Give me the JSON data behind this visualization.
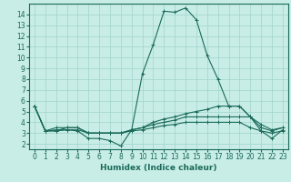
{
  "title": "",
  "xlabel": "Humidex (Indice chaleur)",
  "ylabel": "",
  "bg_color": "#c8ece6",
  "grid_color": "#a0d4cc",
  "line_color": "#1a6b5a",
  "xlim": [
    -0.5,
    23.5
  ],
  "ylim": [
    1.5,
    15.0
  ],
  "xticks": [
    0,
    1,
    2,
    3,
    4,
    5,
    6,
    7,
    8,
    9,
    10,
    11,
    12,
    13,
    14,
    15,
    16,
    17,
    18,
    19,
    20,
    21,
    22,
    23
  ],
  "yticks": [
    2,
    3,
    4,
    5,
    6,
    7,
    8,
    9,
    10,
    11,
    12,
    13,
    14
  ],
  "lines": [
    {
      "x": [
        0,
        1,
        2,
        3,
        4,
        5,
        6,
        7,
        8,
        9,
        10,
        11,
        12,
        13,
        14,
        15,
        16,
        17,
        18,
        19,
        20,
        21,
        22,
        23
      ],
      "y": [
        5.5,
        3.2,
        3.3,
        3.3,
        3.2,
        2.5,
        2.5,
        2.3,
        1.8,
        3.3,
        8.5,
        11.2,
        14.3,
        14.2,
        14.6,
        13.5,
        10.2,
        8.0,
        5.5,
        5.5,
        4.5,
        3.2,
        2.5,
        3.3
      ]
    },
    {
      "x": [
        0,
        1,
        2,
        3,
        4,
        5,
        6,
        7,
        8,
        9,
        10,
        11,
        12,
        13,
        14,
        15,
        16,
        17,
        18,
        19,
        20,
        21,
        22,
        23
      ],
      "y": [
        5.5,
        3.2,
        3.5,
        3.5,
        3.5,
        3.0,
        3.0,
        3.0,
        3.0,
        3.3,
        3.5,
        4.0,
        4.3,
        4.5,
        4.8,
        5.0,
        5.2,
        5.5,
        5.5,
        5.5,
        4.5,
        3.8,
        3.3,
        3.5
      ]
    },
    {
      "x": [
        0,
        1,
        2,
        3,
        4,
        5,
        6,
        7,
        8,
        9,
        10,
        11,
        12,
        13,
        14,
        15,
        16,
        17,
        18,
        19,
        20,
        21,
        22,
        23
      ],
      "y": [
        5.5,
        3.2,
        3.2,
        3.5,
        3.5,
        3.0,
        3.0,
        3.0,
        3.0,
        3.3,
        3.5,
        3.8,
        4.0,
        4.2,
        4.5,
        4.5,
        4.5,
        4.5,
        4.5,
        4.5,
        4.5,
        3.5,
        3.2,
        3.5
      ]
    },
    {
      "x": [
        0,
        1,
        2,
        3,
        4,
        5,
        6,
        7,
        8,
        9,
        10,
        11,
        12,
        13,
        14,
        15,
        16,
        17,
        18,
        19,
        20,
        21,
        22,
        23
      ],
      "y": [
        5.5,
        3.2,
        3.2,
        3.3,
        3.3,
        3.0,
        3.0,
        3.0,
        3.0,
        3.2,
        3.3,
        3.5,
        3.7,
        3.8,
        4.0,
        4.0,
        4.0,
        4.0,
        4.0,
        4.0,
        3.5,
        3.2,
        3.0,
        3.2
      ]
    }
  ],
  "marker": "+",
  "markersize": 3,
  "linewidth": 0.8,
  "tick_fontsize": 5.5,
  "xlabel_fontsize": 6.5
}
